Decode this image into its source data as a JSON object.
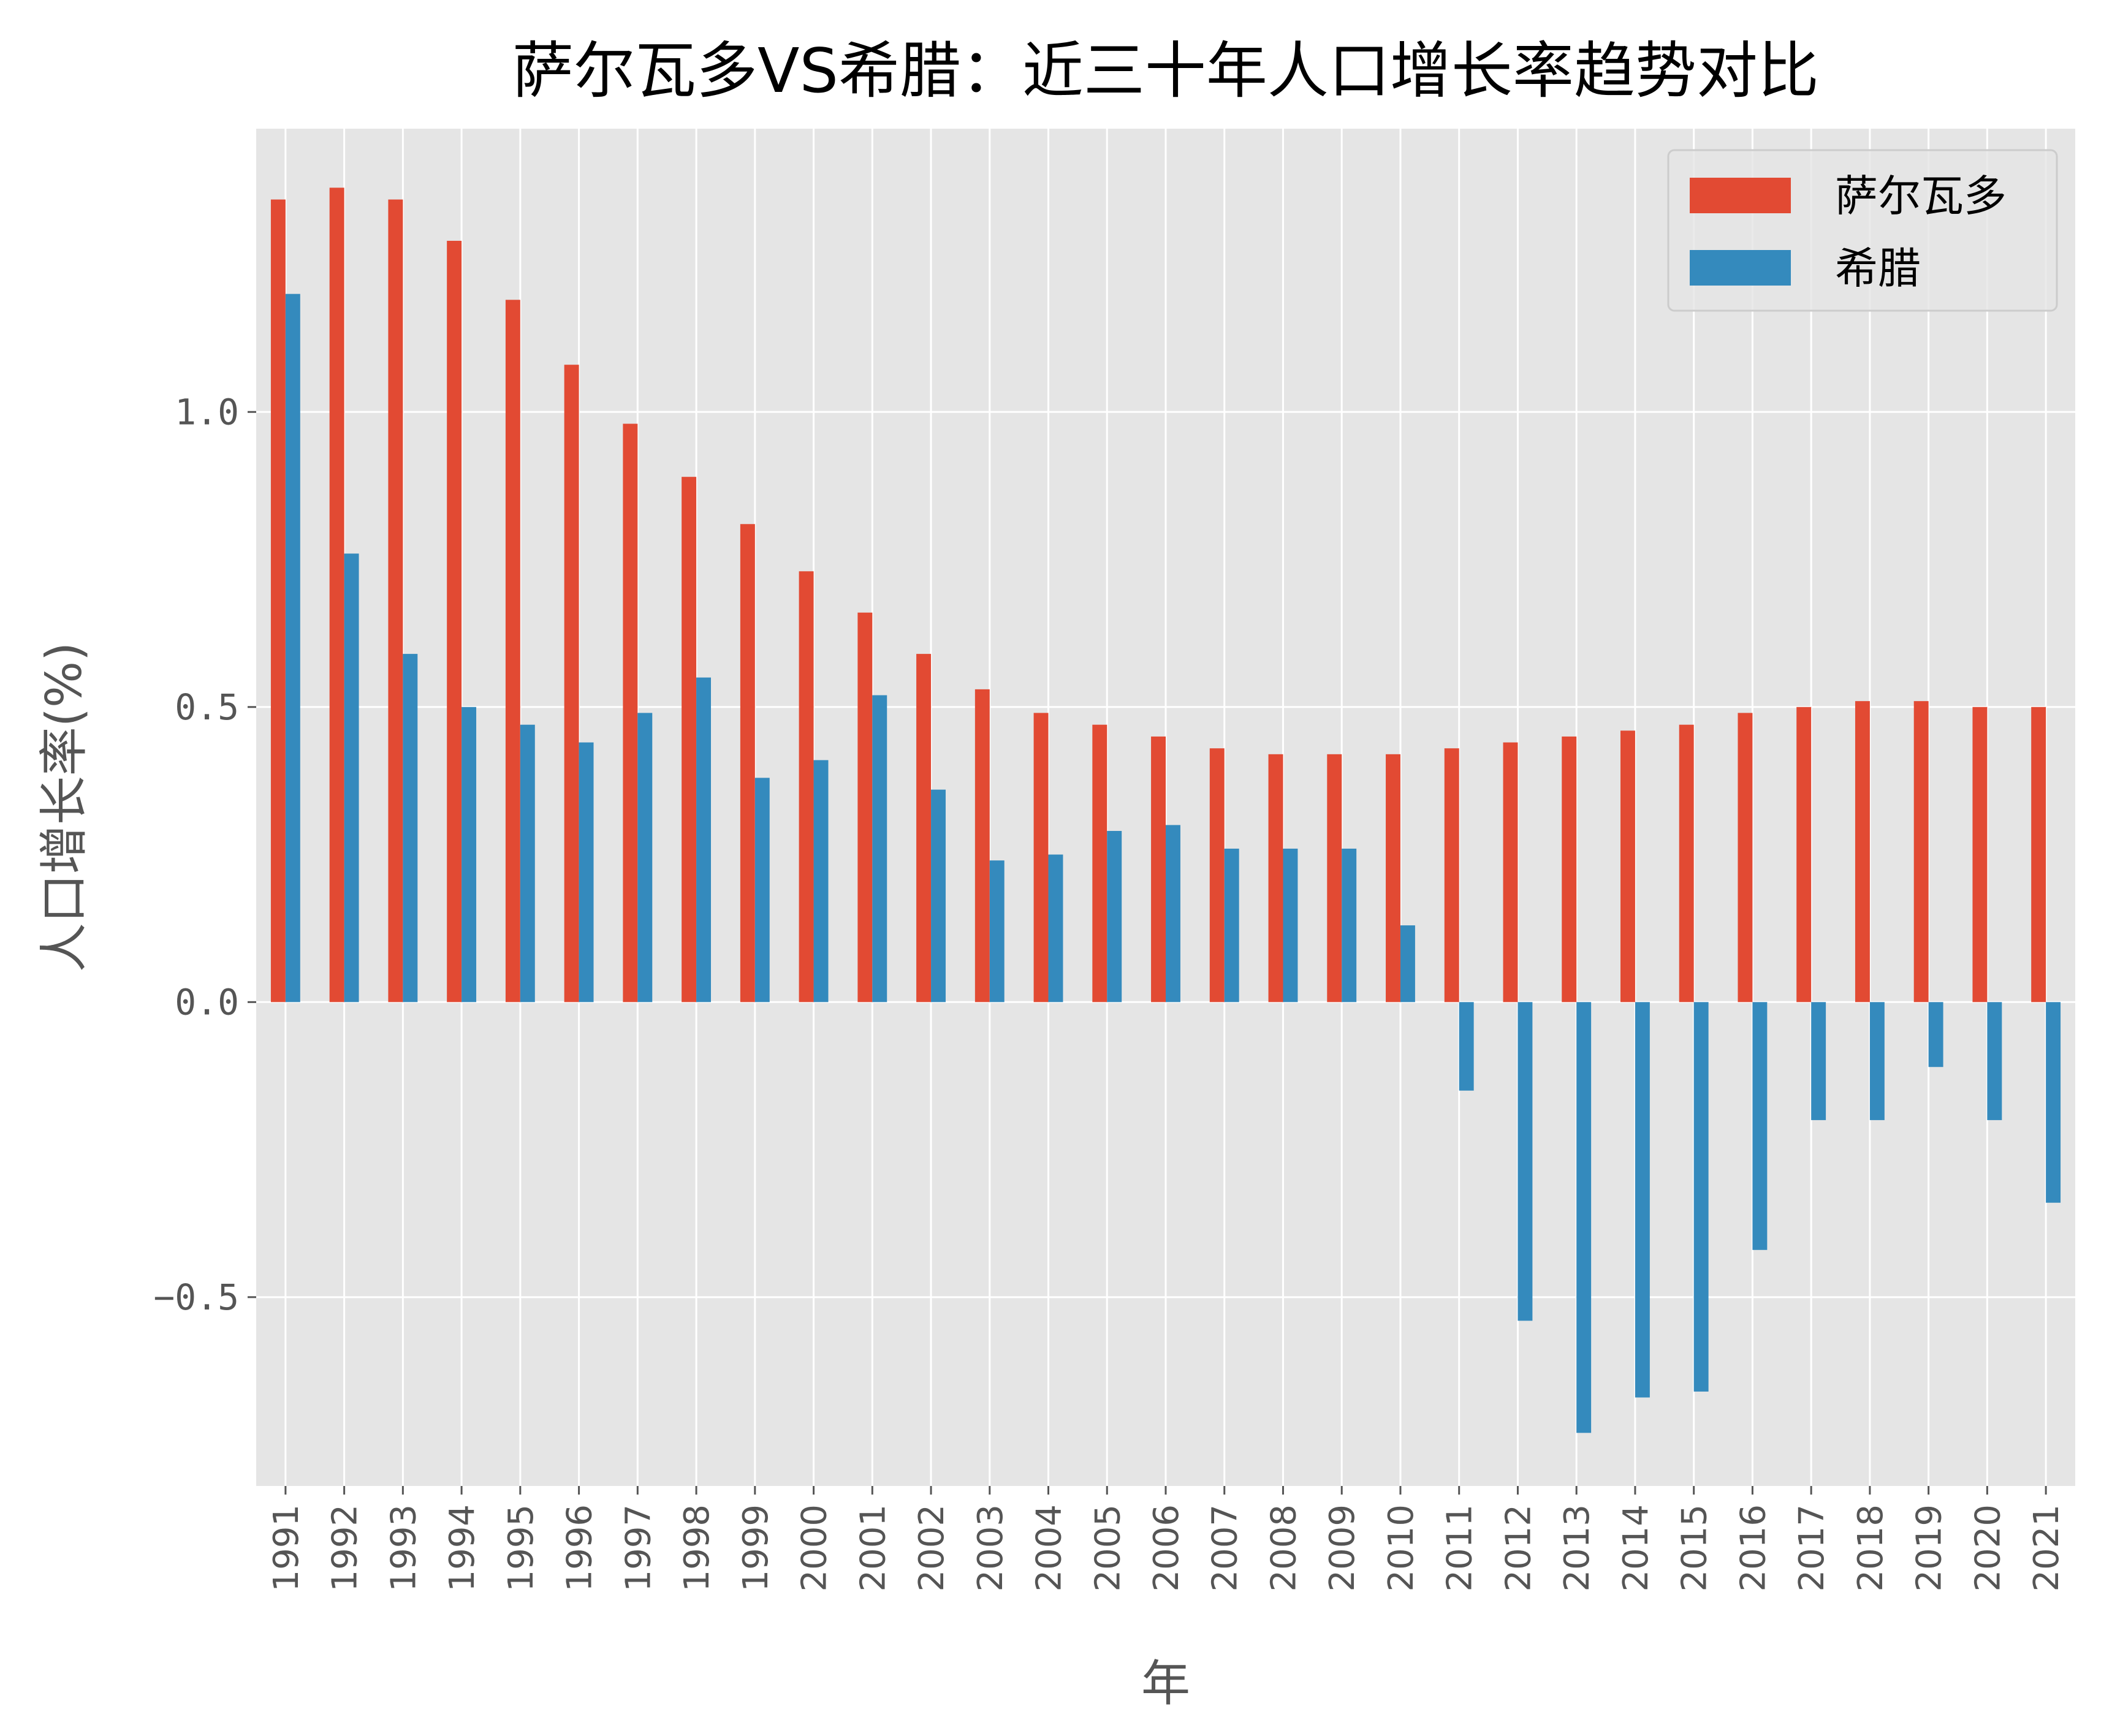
{
  "chart_data": {
    "type": "bar",
    "title": "萨尔瓦多VS希腊：近三十年人口增长率趋势对比",
    "xlabel": "年",
    "ylabel": "人口增长率(%)",
    "categories": [
      "1991",
      "1992",
      "1993",
      "1994",
      "1995",
      "1996",
      "1997",
      "1998",
      "1999",
      "2000",
      "2001",
      "2002",
      "2003",
      "2004",
      "2005",
      "2006",
      "2007",
      "2008",
      "2009",
      "2010",
      "2011",
      "2012",
      "2013",
      "2014",
      "2015",
      "2016",
      "2017",
      "2018",
      "2019",
      "2020",
      "2021"
    ],
    "series": [
      {
        "name": "萨尔瓦多",
        "color": "#E24A33",
        "values": [
          1.36,
          1.38,
          1.36,
          1.29,
          1.19,
          1.08,
          0.98,
          0.89,
          0.81,
          0.73,
          0.66,
          0.59,
          0.53,
          0.49,
          0.47,
          0.45,
          0.43,
          0.42,
          0.42,
          0.42,
          0.43,
          0.44,
          0.45,
          0.46,
          0.47,
          0.49,
          0.5,
          0.51,
          0.51,
          0.5,
          0.5
        ]
      },
      {
        "name": "希腊",
        "color": "#348ABD",
        "values": [
          1.2,
          0.76,
          0.59,
          0.5,
          0.47,
          0.44,
          0.49,
          0.55,
          0.38,
          0.41,
          0.52,
          0.36,
          0.24,
          0.25,
          0.29,
          0.3,
          0.26,
          0.26,
          0.26,
          0.13,
          -0.15,
          -0.54,
          -0.73,
          -0.67,
          -0.66,
          -0.42,
          -0.2,
          -0.2,
          -0.11,
          -0.2,
          -0.34
        ]
      }
    ],
    "yticks": [
      -0.5,
      0.0,
      0.5,
      1.0
    ],
    "ytick_labels": [
      "−0.5",
      "0.0",
      "0.5",
      "1.0"
    ],
    "ylim": [
      -0.82,
      1.48
    ],
    "grid": true,
    "legend_position": "top-right",
    "background_color": "#E5E5E5",
    "grid_color": "#FFFFFF"
  }
}
